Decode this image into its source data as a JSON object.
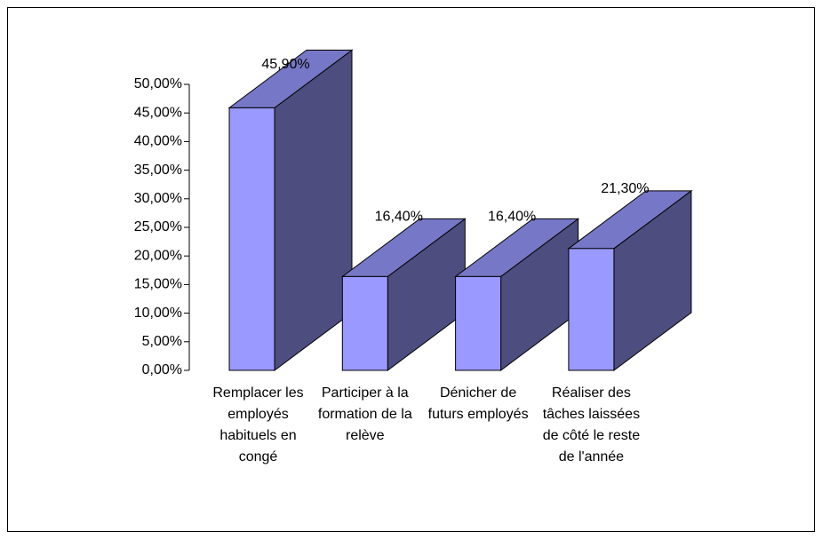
{
  "chart_data": {
    "type": "bar3d",
    "categories": [
      "Remplacer les employés habituels en congé",
      "Participer à la formation de la relève",
      "Dénicher de futurs employés",
      "Réaliser des tâches laissées de côté le reste de l'année"
    ],
    "values": [
      45.9,
      16.4,
      16.4,
      21.3
    ],
    "value_labels": [
      "45,90%",
      "16,40%",
      "16,40%",
      "21,30%"
    ],
    "color": "#9999ff",
    "ylim": [
      0,
      50
    ],
    "yticks": [
      {
        "value": 0,
        "label": "0,00%"
      },
      {
        "value": 5,
        "label": "5,00%"
      },
      {
        "value": 10,
        "label": "10,00%"
      },
      {
        "value": 15,
        "label": "15,00%"
      },
      {
        "value": 20,
        "label": "20,00%"
      },
      {
        "value": 25,
        "label": "25,00%"
      },
      {
        "value": 30,
        "label": "30,00%"
      },
      {
        "value": 35,
        "label": "35,00%"
      },
      {
        "value": 40,
        "label": "40,00%"
      },
      {
        "value": 45,
        "label": "45,00%"
      },
      {
        "value": 50,
        "label": "50,00%"
      }
    ]
  }
}
